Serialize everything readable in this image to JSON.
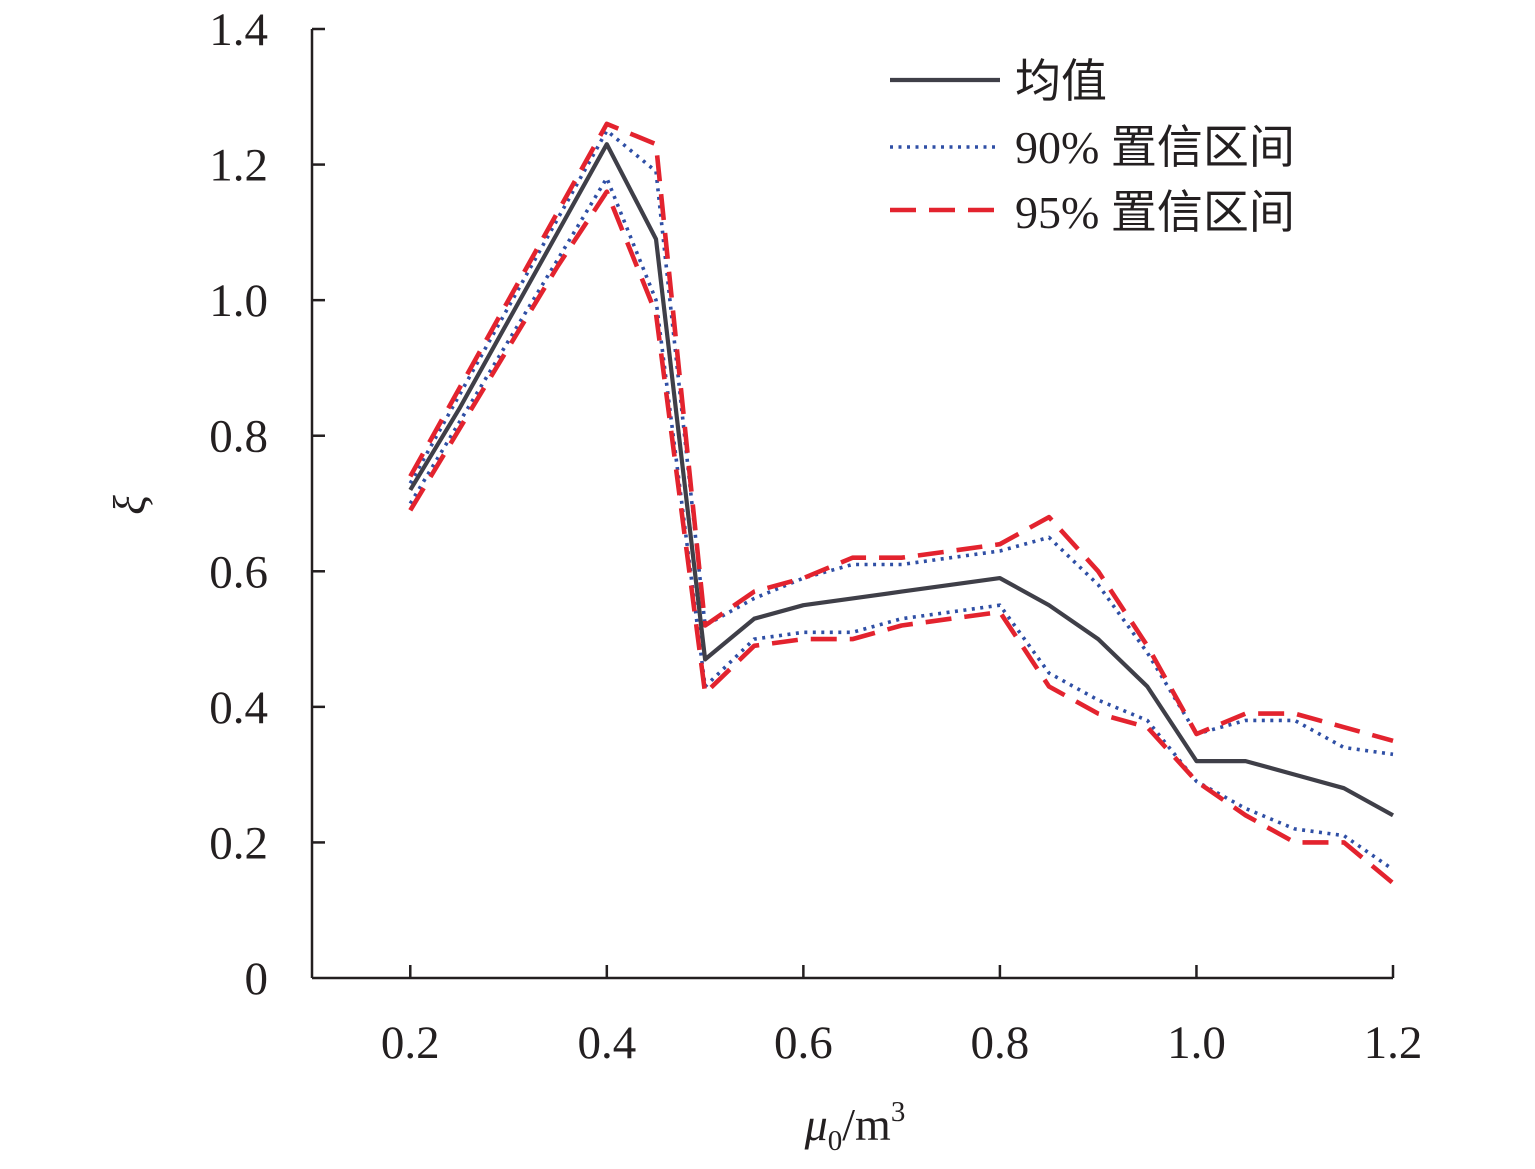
{
  "chart_data": {
    "type": "line",
    "xlabel": {
      "symbol": "μ",
      "subscript": "0",
      "unit": "/m",
      "superscript": "3"
    },
    "ylabel": "ξ",
    "xlim": [
      0.1,
      1.2
    ],
    "ylim": [
      0,
      1.4
    ],
    "grid": false,
    "legend_position": "top-right",
    "x_ticks": [
      {
        "value": 0.2,
        "label": "0.2"
      },
      {
        "value": 0.4,
        "label": "0.4"
      },
      {
        "value": 0.6,
        "label": "0.6"
      },
      {
        "value": 0.8,
        "label": "0.8"
      },
      {
        "value": 1.0,
        "label": "1.0"
      },
      {
        "value": 1.2,
        "label": "1.2"
      }
    ],
    "y_ticks": [
      {
        "value": 0,
        "label": "0"
      },
      {
        "value": 0.2,
        "label": "0.2"
      },
      {
        "value": 0.4,
        "label": "0.4"
      },
      {
        "value": 0.6,
        "label": "0.6"
      },
      {
        "value": 0.8,
        "label": "0.8"
      },
      {
        "value": 1.0,
        "label": "1.0"
      },
      {
        "value": 1.2,
        "label": "1.2"
      },
      {
        "value": 1.4,
        "label": "1.4"
      }
    ],
    "x": [
      0.2,
      0.25,
      0.3,
      0.35,
      0.4,
      0.45,
      0.5,
      0.55,
      0.6,
      0.65,
      0.7,
      0.75,
      0.8,
      0.85,
      0.9,
      0.95,
      1.0,
      1.05,
      1.1,
      1.15,
      1.2
    ],
    "series": [
      {
        "name": "均值",
        "color": "#3f3f48",
        "line_style": "solid",
        "values": [
          0.72,
          0.84,
          0.97,
          1.1,
          1.23,
          1.09,
          0.47,
          0.53,
          0.55,
          0.56,
          0.57,
          0.58,
          0.59,
          0.55,
          0.5,
          0.43,
          0.32,
          0.32,
          0.3,
          0.28,
          0.24
        ]
      },
      {
        "name": "90% 置信区间",
        "color": "#2f4fa5",
        "line_style": "dotted",
        "upper": [
          0.73,
          0.86,
          0.99,
          1.12,
          1.25,
          1.19,
          0.52,
          0.56,
          0.59,
          0.61,
          0.61,
          0.62,
          0.63,
          0.65,
          0.58,
          0.48,
          0.36,
          0.38,
          0.38,
          0.34,
          0.33
        ],
        "lower": [
          0.7,
          0.82,
          0.94,
          1.06,
          1.18,
          1.0,
          0.43,
          0.5,
          0.51,
          0.51,
          0.53,
          0.54,
          0.55,
          0.45,
          0.41,
          0.38,
          0.29,
          0.25,
          0.22,
          0.21,
          0.16
        ]
      },
      {
        "name": "95% 置信区间",
        "color": "#e3232e",
        "line_style": "dashed",
        "upper": [
          0.74,
          0.87,
          1.0,
          1.13,
          1.26,
          1.23,
          0.52,
          0.57,
          0.59,
          0.62,
          0.62,
          0.63,
          0.64,
          0.68,
          0.6,
          0.49,
          0.36,
          0.39,
          0.39,
          0.37,
          0.35
        ],
        "lower": [
          0.69,
          0.81,
          0.93,
          1.05,
          1.16,
          0.98,
          0.42,
          0.49,
          0.5,
          0.5,
          0.52,
          0.53,
          0.54,
          0.43,
          0.39,
          0.37,
          0.29,
          0.24,
          0.2,
          0.2,
          0.14
        ]
      }
    ]
  }
}
